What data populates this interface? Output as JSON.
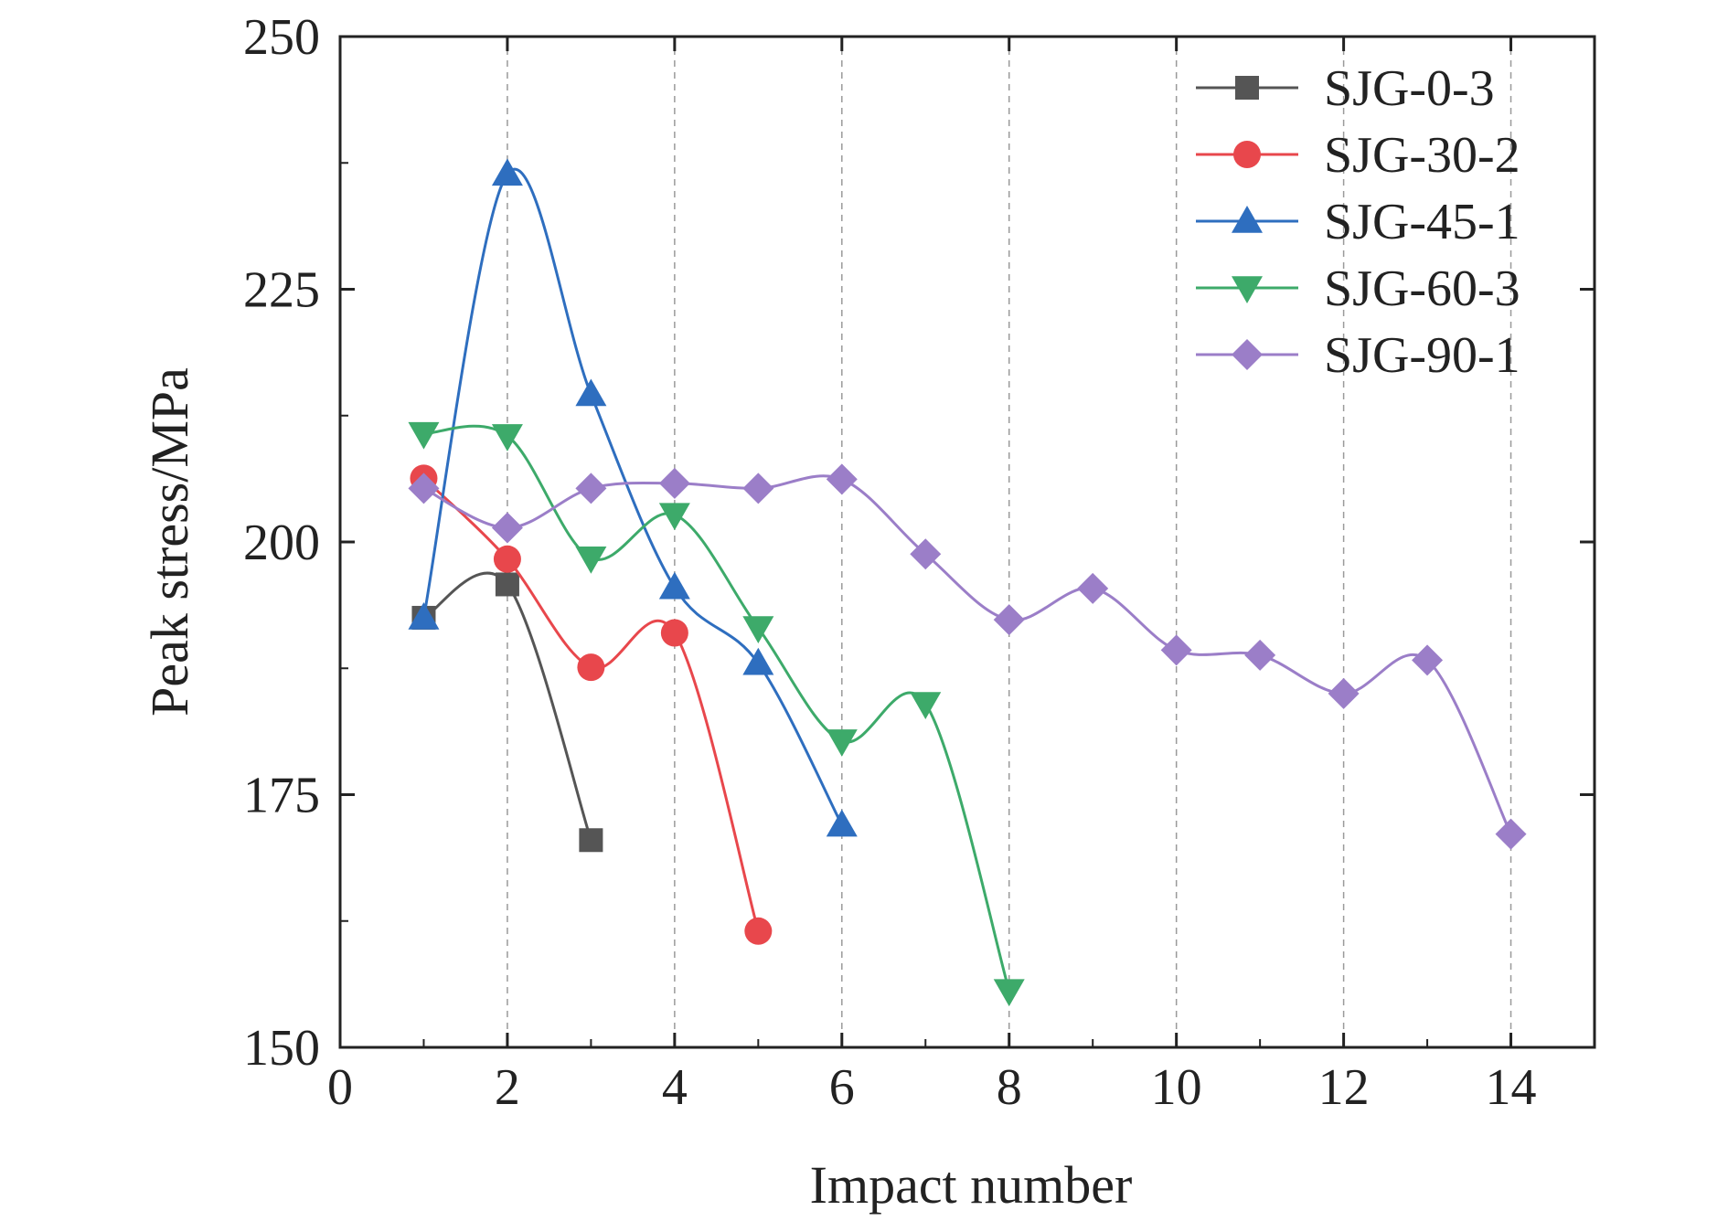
{
  "chart_data": {
    "type": "line",
    "xlabel": "Impact number",
    "ylabel": "Peak stress/MPa",
    "xlim": [
      0,
      15
    ],
    "ylim": [
      150,
      250
    ],
    "xticks": [
      0,
      2,
      4,
      6,
      8,
      10,
      12,
      14
    ],
    "yticks": [
      150,
      175,
      200,
      225,
      250
    ],
    "grid": "vertical dashed at major x ticks",
    "legend_position": "top-right",
    "series": [
      {
        "name": "SJG-0-3",
        "marker": "square",
        "color": "#555555",
        "x": [
          1,
          2,
          3
        ],
        "values": [
          192.5,
          195.8,
          170.5
        ]
      },
      {
        "name": "SJG-30-2",
        "marker": "circle",
        "color": "#e8474c",
        "x": [
          1,
          2,
          3,
          4,
          5
        ],
        "values": [
          206.3,
          198.3,
          187.6,
          191.0,
          161.5
        ]
      },
      {
        "name": "SJG-45-1",
        "marker": "triangle-up",
        "color": "#2e6ebf",
        "x": [
          1,
          2,
          3,
          4,
          5,
          6
        ],
        "values": [
          192.5,
          236.4,
          214.6,
          195.5,
          188.0,
          172.0
        ]
      },
      {
        "name": "SJG-60-3",
        "marker": "triangle-down",
        "color": "#3daa6a",
        "x": [
          1,
          2,
          3,
          4,
          5,
          6,
          7,
          8
        ],
        "values": [
          210.7,
          210.5,
          198.4,
          202.7,
          191.5,
          180.3,
          184.0,
          155.6
        ]
      },
      {
        "name": "SJG-90-1",
        "marker": "diamond",
        "color": "#9b7ec8",
        "x": [
          1,
          2,
          3,
          4,
          5,
          6,
          7,
          8,
          9,
          10,
          11,
          12,
          13,
          14
        ],
        "values": [
          205.3,
          201.4,
          205.3,
          205.8,
          205.3,
          206.2,
          198.8,
          192.3,
          195.4,
          189.3,
          188.8,
          185.0,
          188.3,
          171.1
        ]
      }
    ]
  }
}
